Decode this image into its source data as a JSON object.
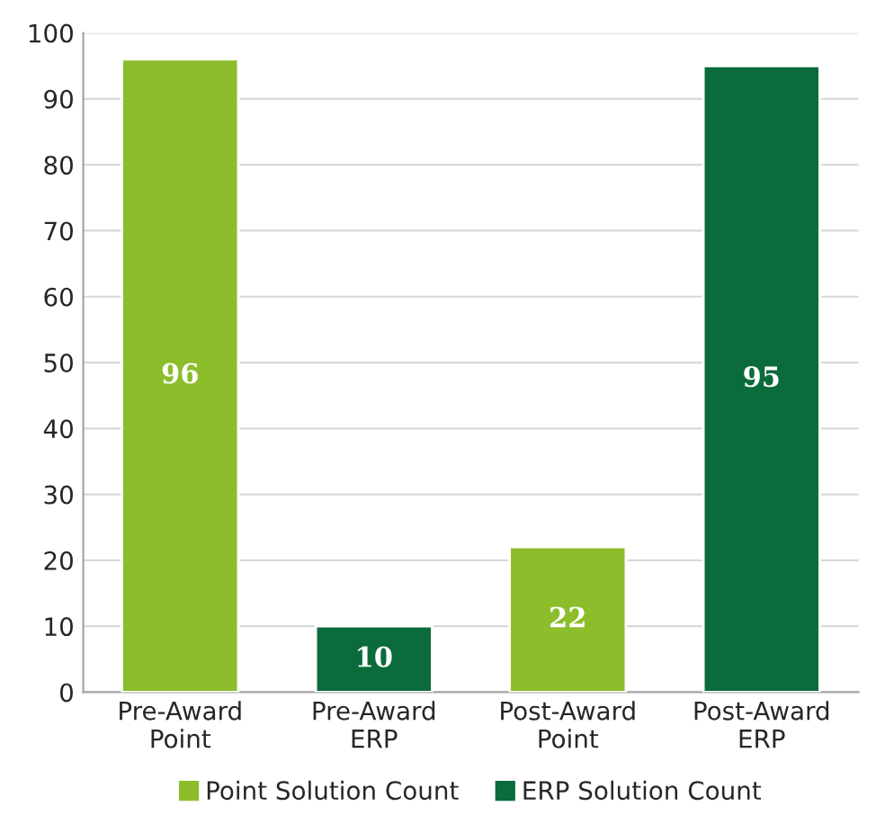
{
  "chart_data": {
    "type": "bar",
    "categories": [
      "Pre-Award\nPoint",
      "Pre-Award\nERP",
      "Post-Award\nPoint",
      "Post-Award\nERP"
    ],
    "series": [
      {
        "name": "Point Solution Count",
        "color": "#8cbd2a",
        "values": [
          96,
          null,
          22,
          null
        ]
      },
      {
        "name": "ERP Solution Count",
        "color": "#0b6b3a",
        "values": [
          null,
          10,
          null,
          95
        ]
      }
    ],
    "ylim": [
      0,
      100
    ],
    "yticks": [
      0,
      10,
      20,
      30,
      40,
      50,
      60,
      70,
      80,
      90,
      100
    ],
    "grid": "y",
    "legend": "bottom",
    "data_labels": true
  }
}
